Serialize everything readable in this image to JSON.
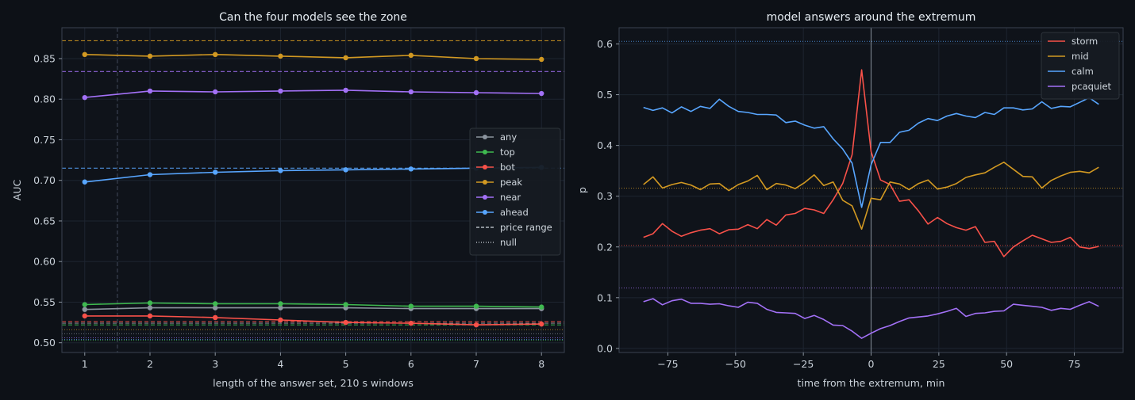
{
  "colors": {
    "any": "#8b949e",
    "top": "#3fb950",
    "bot": "#f85149",
    "peak": "#d29922",
    "near": "#a371f7",
    "ahead": "#58a6ff",
    "storm": "#f85149",
    "mid": "#d29922",
    "calm": "#58a6ff",
    "pcaquiet": "#a371f7"
  },
  "chart_data": [
    {
      "type": "line",
      "title": "Can the four models see the zone",
      "xlabel": "length of the answer set, 210 s windows",
      "ylabel": "AUC",
      "xlim": [
        0.65,
        8.35
      ],
      "ylim": [
        0.488,
        0.888
      ],
      "xticks": [
        1,
        2,
        3,
        4,
        5,
        6,
        7,
        8
      ],
      "xtick_labels": [
        "1",
        "2",
        "3",
        "4",
        "5",
        "6",
        "7",
        "8"
      ],
      "yticks": [
        0.5,
        0.55,
        0.6,
        0.65,
        0.7,
        0.75,
        0.8,
        0.85
      ],
      "ytick_labels": [
        "0.50",
        "0.55",
        "0.60",
        "0.65",
        "0.70",
        "0.75",
        "0.80",
        "0.85"
      ],
      "grid": true,
      "vline": 1.5,
      "legend_position": "center-right",
      "x": [
        1,
        2,
        3,
        4,
        5,
        6,
        7,
        8
      ],
      "series": [
        {
          "name": "any",
          "color_key": "any",
          "values": [
            0.541,
            0.543,
            0.543,
            0.543,
            0.543,
            0.542,
            0.542,
            0.542
          ]
        },
        {
          "name": "top",
          "color_key": "top",
          "values": [
            0.547,
            0.549,
            0.548,
            0.548,
            0.547,
            0.545,
            0.545,
            0.544
          ]
        },
        {
          "name": "bot",
          "color_key": "bot",
          "values": [
            0.533,
            0.533,
            0.531,
            0.528,
            0.525,
            0.524,
            0.522,
            0.523
          ]
        },
        {
          "name": "peak",
          "color_key": "peak",
          "values": [
            0.855,
            0.853,
            0.855,
            0.853,
            0.851,
            0.854,
            0.85,
            0.849
          ]
        },
        {
          "name": "near",
          "color_key": "near",
          "values": [
            0.802,
            0.81,
            0.809,
            0.81,
            0.811,
            0.809,
            0.808,
            0.807
          ]
        },
        {
          "name": "ahead",
          "color_key": "ahead",
          "values": [
            0.698,
            0.707,
            0.71,
            0.712,
            0.713,
            0.714,
            0.715,
            0.716
          ]
        }
      ],
      "price_range_refs": [
        {
          "color_key": "peak",
          "value": 0.872
        },
        {
          "color_key": "near",
          "value": 0.834
        },
        {
          "color_key": "ahead",
          "value": 0.715
        },
        {
          "color_key": "bot",
          "value": 0.526
        },
        {
          "color_key": "any",
          "value": 0.524
        },
        {
          "color_key": "top",
          "value": 0.522
        }
      ],
      "null_refs": [
        {
          "color_key": "peak",
          "value": 0.516
        },
        {
          "color_key": "any",
          "value": 0.511
        },
        {
          "color_key": "near",
          "value": 0.506
        },
        {
          "color_key": "ahead",
          "value": 0.504
        },
        {
          "color_key": "top",
          "value": 0.503
        }
      ],
      "legend": [
        {
          "label": "any",
          "kind": "marker",
          "color_key": "any"
        },
        {
          "label": "top",
          "kind": "marker",
          "color_key": "top"
        },
        {
          "label": "bot",
          "kind": "marker",
          "color_key": "bot"
        },
        {
          "label": "peak",
          "kind": "marker",
          "color_key": "peak"
        },
        {
          "label": "near",
          "kind": "marker",
          "color_key": "near"
        },
        {
          "label": "ahead",
          "kind": "marker",
          "color_key": "ahead"
        },
        {
          "label": "price range",
          "kind": "dashed",
          "color": "#d0d7de"
        },
        {
          "label": "null",
          "kind": "dotted",
          "color": "#d0d7de"
        }
      ]
    },
    {
      "type": "line",
      "title": "model answers around the extremum",
      "xlabel": "time from the extremum, min",
      "ylabel": "p",
      "xlim": [
        -93,
        93
      ],
      "ylim": [
        -0.008,
        0.632
      ],
      "xticks": [
        -75,
        -50,
        -25,
        0,
        25,
        50,
        75
      ],
      "xtick_labels": [
        "−75",
        "−50",
        "−25",
        "0",
        "25",
        "50",
        "75"
      ],
      "yticks": [
        0,
        0.1,
        0.2,
        0.3,
        0.4,
        0.5,
        0.6
      ],
      "ytick_labels": [
        "0.0",
        "0.1",
        "0.2",
        "0.3",
        "0.4",
        "0.5",
        "0.6"
      ],
      "grid": true,
      "vline": 0,
      "legend_position": "top-right",
      "x": [
        -84,
        -80.5,
        -77,
        -73.5,
        -70,
        -66.5,
        -63,
        -59.5,
        -56,
        -52.5,
        -49,
        -45.5,
        -42,
        -38.5,
        -35,
        -31.5,
        -28,
        -24.5,
        -21,
        -17.5,
        -14,
        -10.5,
        -7,
        -3.5,
        0,
        3.5,
        7,
        10.5,
        14,
        17.5,
        21,
        24.5,
        28,
        31.5,
        35,
        38.5,
        42,
        45.5,
        49,
        52.5,
        56,
        59.5,
        63,
        66.5,
        70,
        73.5,
        77,
        80.5,
        84
      ],
      "series": [
        {
          "name": "storm",
          "color_key": "storm",
          "values": [
            0.219,
            0.226,
            0.246,
            0.231,
            0.221,
            0.228,
            0.233,
            0.236,
            0.226,
            0.234,
            0.235,
            0.244,
            0.236,
            0.254,
            0.243,
            0.263,
            0.266,
            0.276,
            0.273,
            0.266,
            0.293,
            0.325,
            0.382,
            0.549,
            0.388,
            0.332,
            0.323,
            0.29,
            0.293,
            0.271,
            0.245,
            0.258,
            0.246,
            0.238,
            0.233,
            0.24,
            0.209,
            0.211,
            0.181,
            0.2,
            0.212,
            0.223,
            0.216,
            0.209,
            0.211,
            0.219,
            0.2,
            0.197,
            0.201
          ]
        },
        {
          "name": "mid",
          "color_key": "mid",
          "values": [
            0.323,
            0.338,
            0.316,
            0.323,
            0.327,
            0.322,
            0.313,
            0.324,
            0.325,
            0.311,
            0.323,
            0.33,
            0.341,
            0.313,
            0.325,
            0.322,
            0.315,
            0.327,
            0.342,
            0.321,
            0.328,
            0.292,
            0.281,
            0.235,
            0.296,
            0.293,
            0.328,
            0.324,
            0.313,
            0.325,
            0.332,
            0.314,
            0.318,
            0.325,
            0.337,
            0.342,
            0.346,
            0.357,
            0.367,
            0.353,
            0.339,
            0.338,
            0.316,
            0.331,
            0.34,
            0.347,
            0.349,
            0.346,
            0.357
          ]
        },
        {
          "name": "calm",
          "color_key": "calm",
          "values": [
            0.475,
            0.469,
            0.474,
            0.464,
            0.476,
            0.467,
            0.477,
            0.473,
            0.491,
            0.477,
            0.467,
            0.465,
            0.461,
            0.461,
            0.46,
            0.445,
            0.448,
            0.44,
            0.434,
            0.437,
            0.413,
            0.393,
            0.365,
            0.278,
            0.362,
            0.406,
            0.406,
            0.426,
            0.43,
            0.444,
            0.453,
            0.449,
            0.458,
            0.463,
            0.458,
            0.455,
            0.465,
            0.461,
            0.474,
            0.474,
            0.47,
            0.472,
            0.486,
            0.473,
            0.477,
            0.476,
            0.485,
            0.494,
            0.481
          ]
        },
        {
          "name": "pcaquiet",
          "color_key": "pcaquiet",
          "values": [
            0.092,
            0.098,
            0.086,
            0.094,
            0.097,
            0.089,
            0.089,
            0.087,
            0.088,
            0.084,
            0.081,
            0.091,
            0.089,
            0.077,
            0.071,
            0.07,
            0.069,
            0.059,
            0.065,
            0.057,
            0.046,
            0.045,
            0.034,
            0.02,
            0.03,
            0.039,
            0.045,
            0.053,
            0.06,
            0.062,
            0.064,
            0.068,
            0.073,
            0.079,
            0.063,
            0.069,
            0.07,
            0.073,
            0.074,
            0.087,
            0.085,
            0.083,
            0.081,
            0.075,
            0.079,
            0.077,
            0.085,
            0.092,
            0.083
          ]
        }
      ],
      "null_refs": [
        {
          "color_key": "calm",
          "value": 0.605
        },
        {
          "color_key": "mid",
          "value": 0.316
        },
        {
          "color_key": "storm",
          "value": 0.203
        },
        {
          "color_key": "pcaquiet",
          "value": 0.119
        }
      ],
      "legend": [
        {
          "label": "storm",
          "color_key": "storm"
        },
        {
          "label": "mid",
          "color_key": "mid"
        },
        {
          "label": "calm",
          "color_key": "calm"
        },
        {
          "label": "pcaquiet",
          "color_key": "pcaquiet"
        }
      ]
    }
  ]
}
